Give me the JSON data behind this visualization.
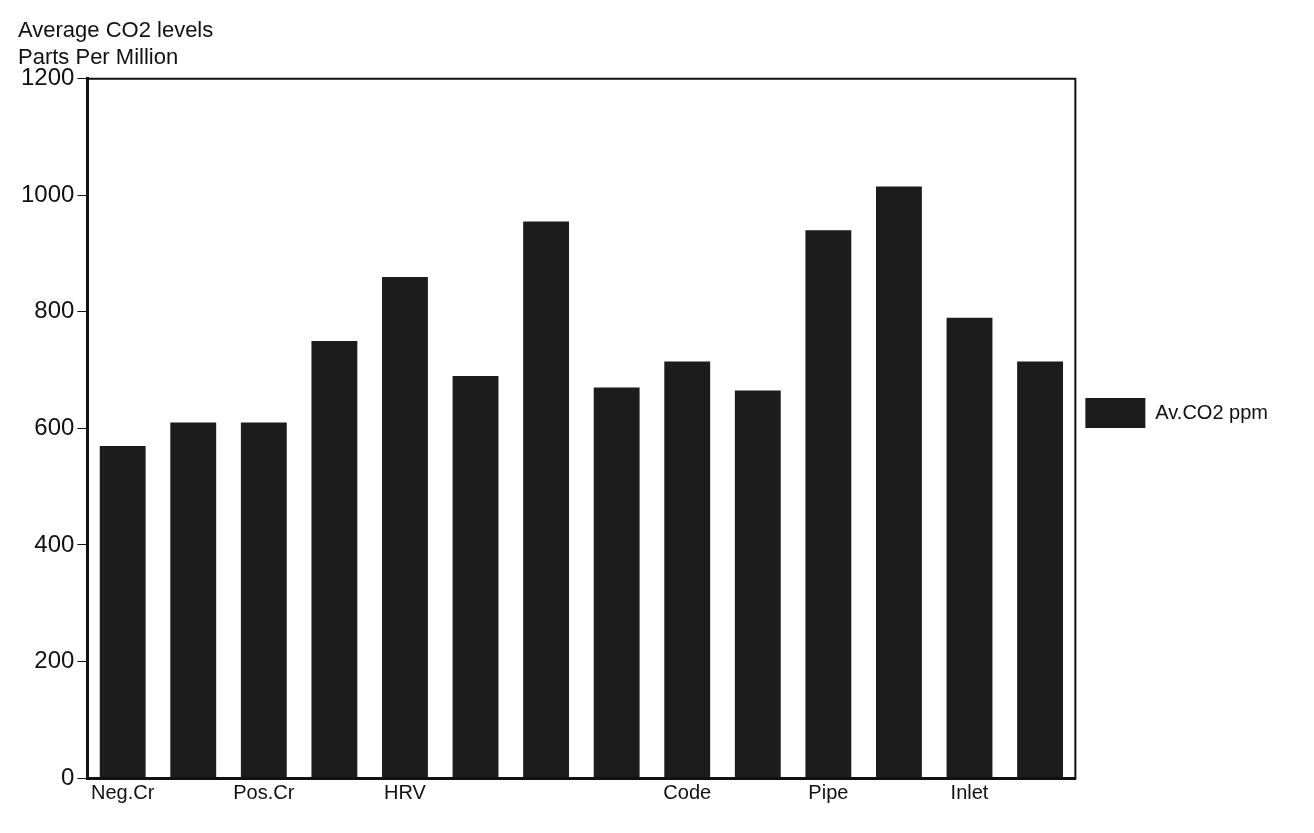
{
  "chart_data": {
    "type": "bar",
    "title": "Average CO2 levels",
    "subtitle": "Parts Per Million",
    "categories": [
      "Neg.Cr",
      null,
      "Pos.Cr",
      null,
      "HRV",
      null,
      null,
      null,
      "Code",
      null,
      "Pipe",
      null,
      "Inlet",
      null
    ],
    "series": [
      {
        "name": "Av.CO2 ppm",
        "color": "#1c1c1c",
        "values": [
          570,
          610,
          610,
          750,
          860,
          690,
          955,
          670,
          715,
          665,
          940,
          1015,
          790,
          715
        ]
      }
    ],
    "ylim": [
      0,
      1200
    ],
    "yticks": [
      0,
      200,
      400,
      600,
      800,
      1000,
      1200
    ],
    "grid": false,
    "legend": "right"
  }
}
